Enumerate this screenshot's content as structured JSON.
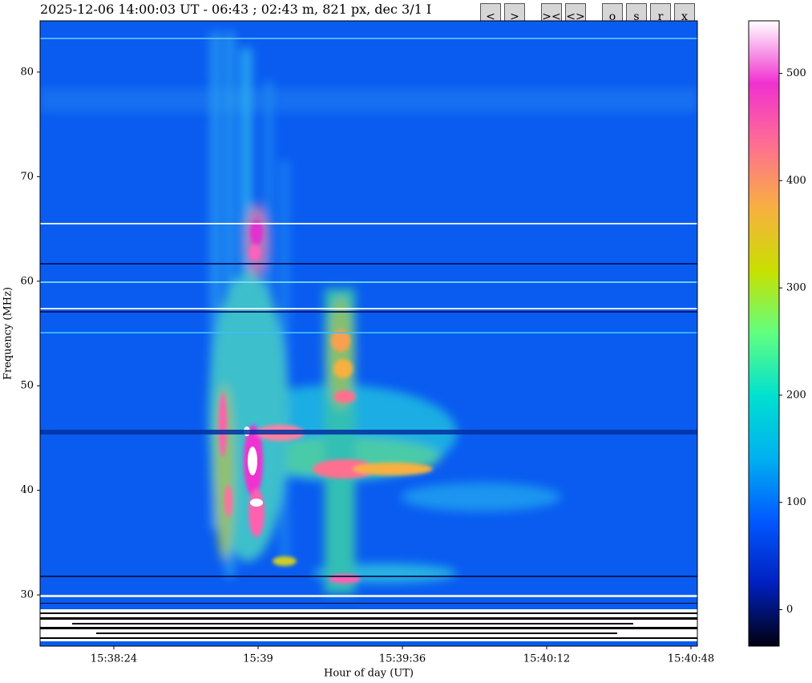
{
  "title": "2025-12-06 14:00:03 UT - 06:43 ; 02:43 m, 821 px, dec 3/1 I",
  "buttons": [
    "<",
    ">",
    "><",
    "<>",
    "o",
    "s",
    "r",
    "x"
  ],
  "chart_data": {
    "type": "spectrogram",
    "xlabel": "Hour of day (UT)",
    "ylabel": "Frequency (MHz)",
    "xlim": [
      55085.6,
      55249.6
    ],
    "xticks": [
      {
        "value": 55104,
        "label": "15:38:24"
      },
      {
        "value": 55140,
        "label": "15:39"
      },
      {
        "value": 55176,
        "label": "15:39:36"
      },
      {
        "value": 55212,
        "label": "15:40:12"
      },
      {
        "value": 55248,
        "label": "15:40:48"
      }
    ],
    "ylim": [
      25.1,
      84.9
    ],
    "yticks": [
      30,
      40,
      50,
      60,
      70,
      80
    ],
    "clim": [
      -34,
      549
    ],
    "cticks": [
      0,
      100,
      200,
      300,
      400,
      500
    ],
    "colormap": [
      "#000010",
      "#0020c0",
      "#0058ff",
      "#00b0f0",
      "#00e0d0",
      "#60ff80",
      "#c8e000",
      "#f8b040",
      "#ff7090",
      "#f030d0",
      "#ffffff"
    ]
  }
}
